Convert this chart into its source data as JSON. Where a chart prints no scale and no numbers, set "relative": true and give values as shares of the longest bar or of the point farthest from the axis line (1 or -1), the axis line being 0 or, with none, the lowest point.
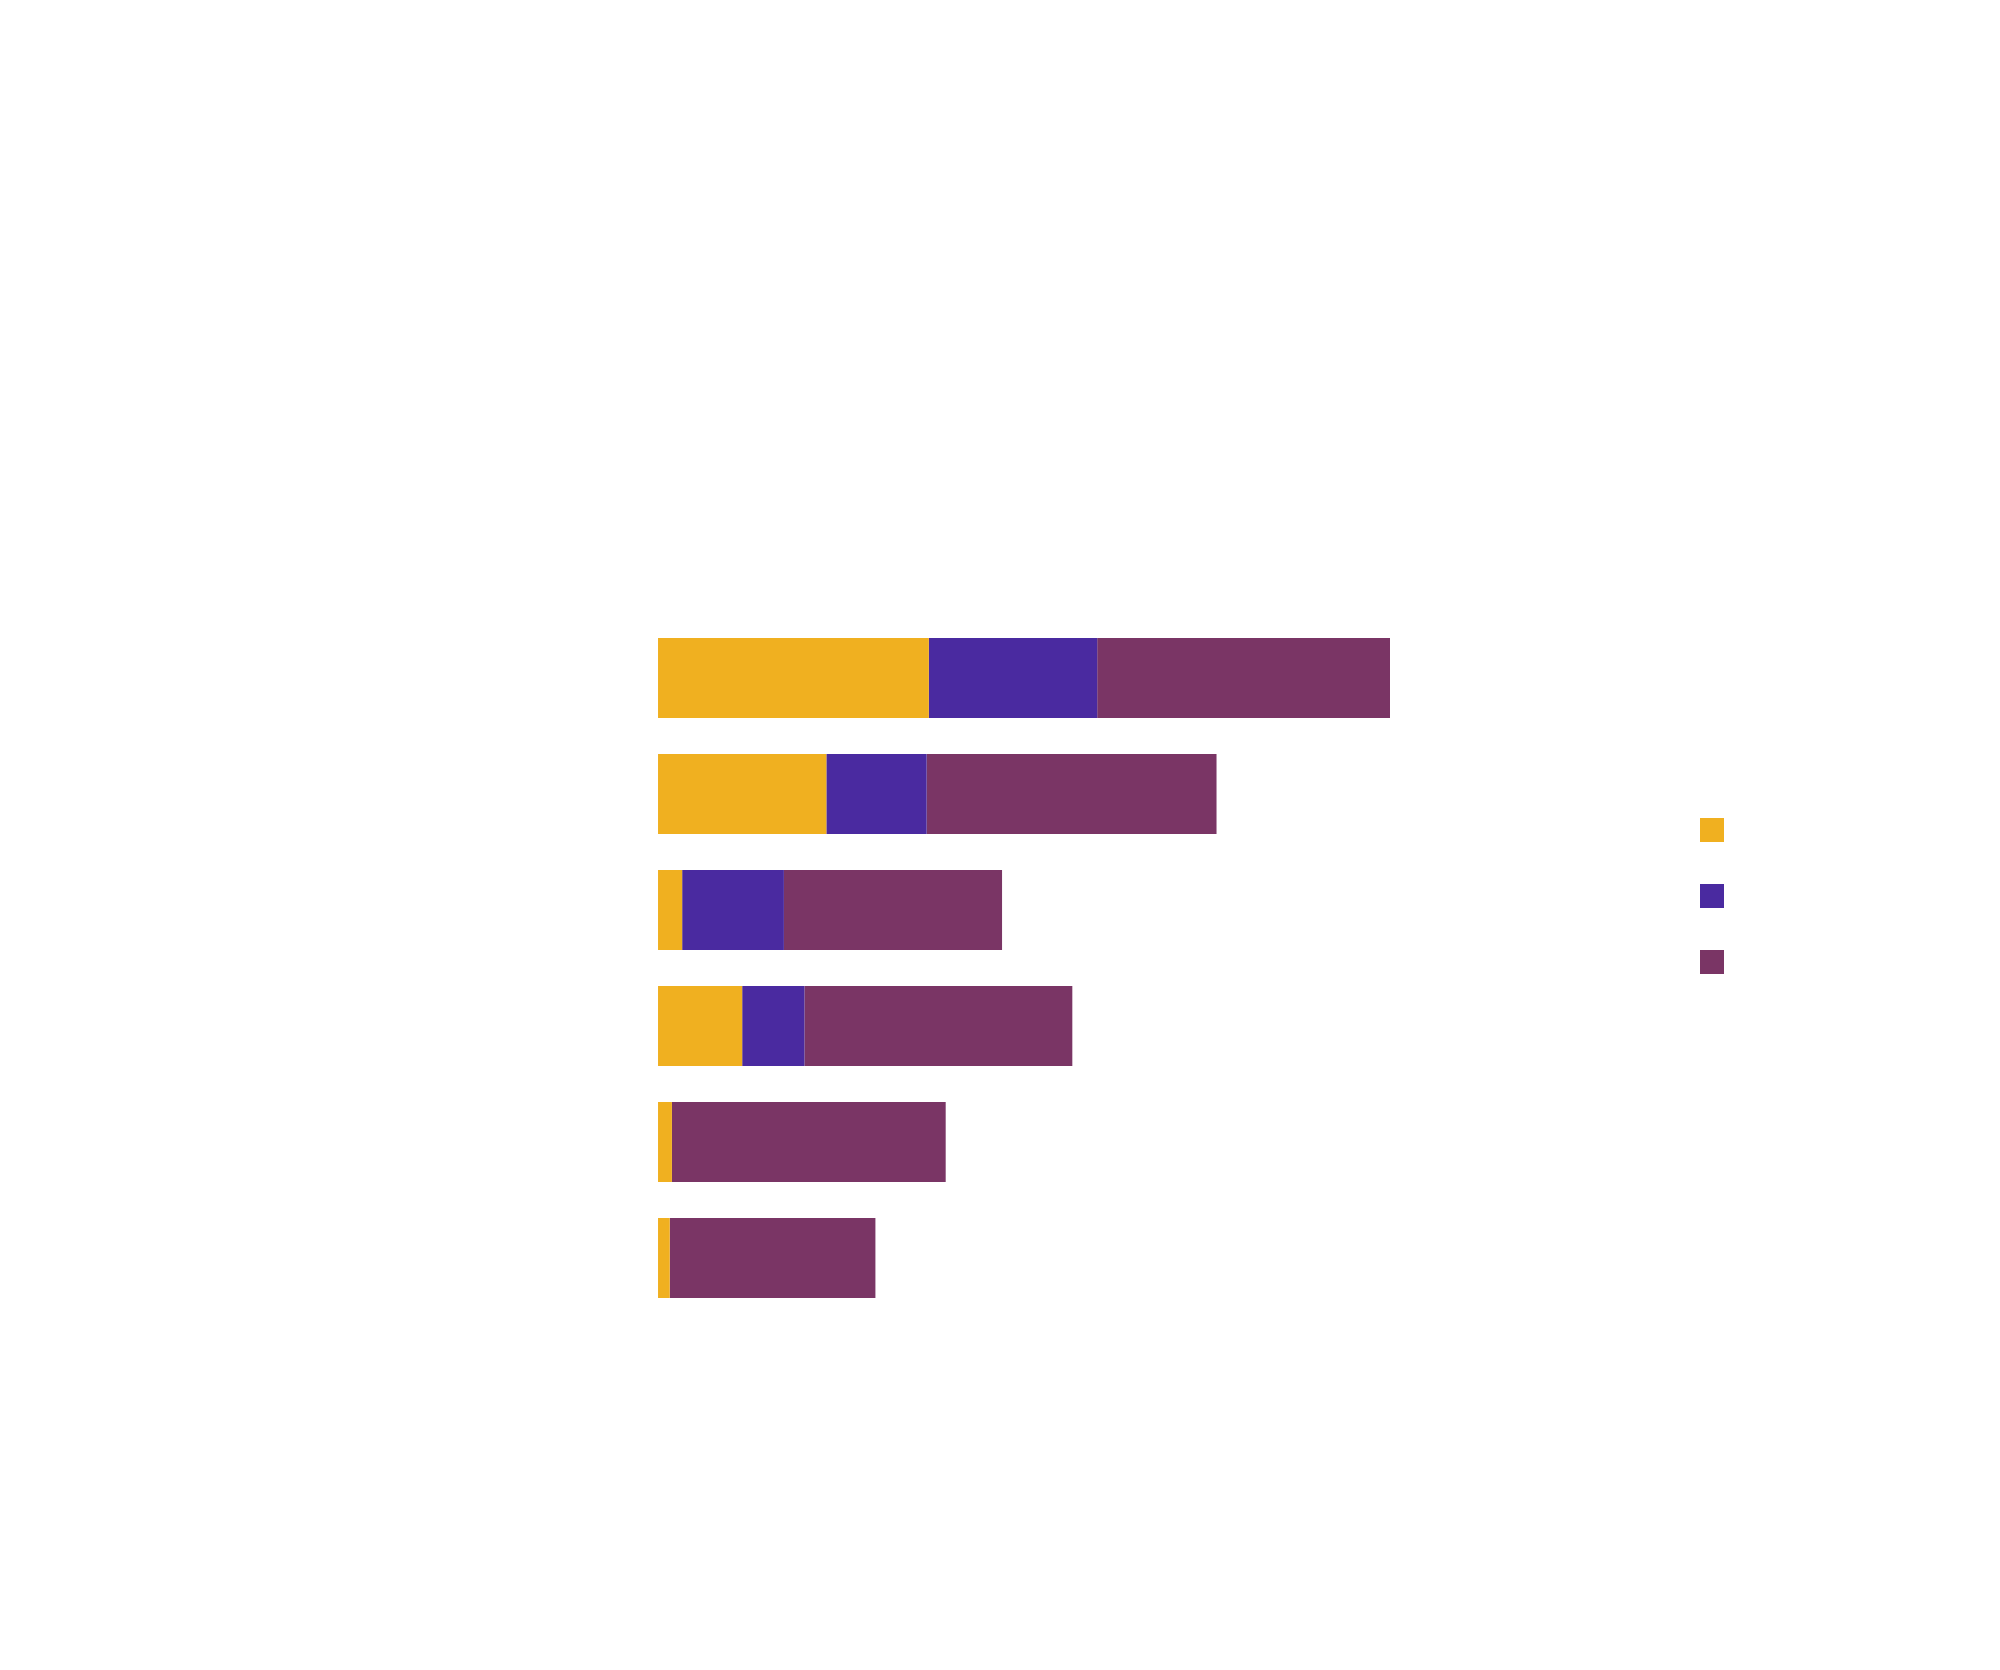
{
  "chart_data": {
    "type": "bar",
    "orientation": "horizontal",
    "stacked": true,
    "relative": true,
    "categories": [
      null,
      null,
      null,
      null,
      null,
      null
    ],
    "series": [
      {
        "color": "#f0b020",
        "values": [
          0.37,
          0.23,
          0.033,
          0.115,
          0.019,
          0.016
        ]
      },
      {
        "color": "#4a2aa0",
        "values": [
          0.23,
          0.137,
          0.139,
          0.085,
          0,
          0
        ]
      },
      {
        "color": "#7a3565",
        "values": [
          0.4,
          0.396,
          0.298,
          0.366,
          0.374,
          0.281
        ]
      }
    ]
  }
}
